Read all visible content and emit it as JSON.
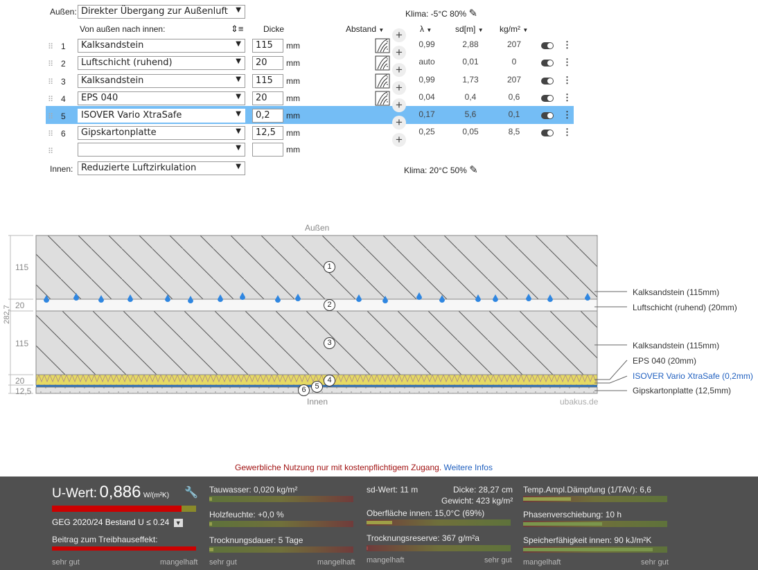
{
  "outside": {
    "label": "Außen:",
    "value": "Direkter Übergang zur Außenluft"
  },
  "inside": {
    "label": "Innen:",
    "value": "Reduzierte Luftzirkulation"
  },
  "climate_out": "Klima: -5°C 80%",
  "climate_in": "Klima: 20°C 50%",
  "headers": {
    "order": "Von außen nach innen:",
    "thickness": "Dicke",
    "distance": "Abstand",
    "lambda": "λ",
    "sd": "sd[m]",
    "weight": "kg/m²"
  },
  "unit_mm": "mm",
  "layers": [
    {
      "no": "1",
      "material": "Kalksandstein",
      "thickness": "115",
      "lambda": "0,99",
      "sd": "2,88",
      "kg": "207"
    },
    {
      "no": "2",
      "material": "Luftschicht (ruhend)",
      "thickness": "20",
      "lambda": "auto",
      "sd": "0,01",
      "kg": "0"
    },
    {
      "no": "3",
      "material": "Kalksandstein",
      "thickness": "115",
      "lambda": "0,99",
      "sd": "1,73",
      "kg": "207"
    },
    {
      "no": "4",
      "material": "EPS 040",
      "thickness": "20",
      "lambda": "0,04",
      "sd": "0,4",
      "kg": "0,6"
    },
    {
      "no": "5",
      "material": "ISOVER Vario XtraSafe",
      "thickness": "0,2",
      "lambda": "0,17",
      "sd": "5,6",
      "kg": "0,1"
    },
    {
      "no": "6",
      "material": "Gipskartonplatte",
      "thickness": "12,5",
      "lambda": "0,25",
      "sd": "0,05",
      "kg": "8,5"
    }
  ],
  "diagram": {
    "top": "Außen",
    "bottom": "Innen",
    "watermark": "ubakus.de",
    "total": "282,7",
    "dims": [
      "115",
      "20",
      "115",
      "20",
      "12,5"
    ],
    "labels": [
      "Kalksandstein (115mm)",
      "Luftschicht (ruhend) (20mm)",
      "Kalksandstein (115mm)",
      "EPS 040 (20mm)",
      "ISOVER Vario XtraSafe (0,2mm)",
      "Gipskartonplatte (12,5mm)"
    ],
    "markers": [
      "1",
      "2",
      "3",
      "4",
      "5",
      "6"
    ]
  },
  "notice": {
    "text": "Gewerbliche Nutzung nur mit kostenpflichtigem Zugang.",
    "link": "Weitere Infos"
  },
  "results": {
    "uwert_label": "U-Wert:",
    "uwert_value": "0,886",
    "uwert_unit": "W/(m²K)",
    "geg": "GEG 2020/24 Bestand U ≤ 0.24",
    "treibhaus": "Beitrag zum Treibhauseffekt:",
    "tauwasser": "Tauwasser: 0,020 kg/m²",
    "holzfeuchte": "Holzfeuchte: +0,0 %",
    "trocknungsdauer": "Trocknungsdauer: 5 Tage",
    "sdwert": "sd-Wert: 11 m",
    "dicke": "Dicke: 28,27 cm",
    "gewicht": "Gewicht: 423 kg/m²",
    "oberflaeche": "Oberfläche innen: 15,0°C (69%)",
    "reserve": "Trocknungsreserve: 367 g/m²a",
    "daempfung": "Temp.Ampl.Dämpfung (1/TAV): 6,6",
    "phase": "Phasenverschiebung: 10 h",
    "speicher": "Speicherfähigkeit innen: 90 kJ/m²K",
    "sehr_gut": "sehr gut",
    "mangelhaft": "mangelhaft"
  },
  "colors": {
    "selected_row": "#74bdf5",
    "footer_bg": "#505050",
    "insulation": "#e4d96a",
    "link": "#1f5fbf",
    "notice": "#a01010"
  }
}
